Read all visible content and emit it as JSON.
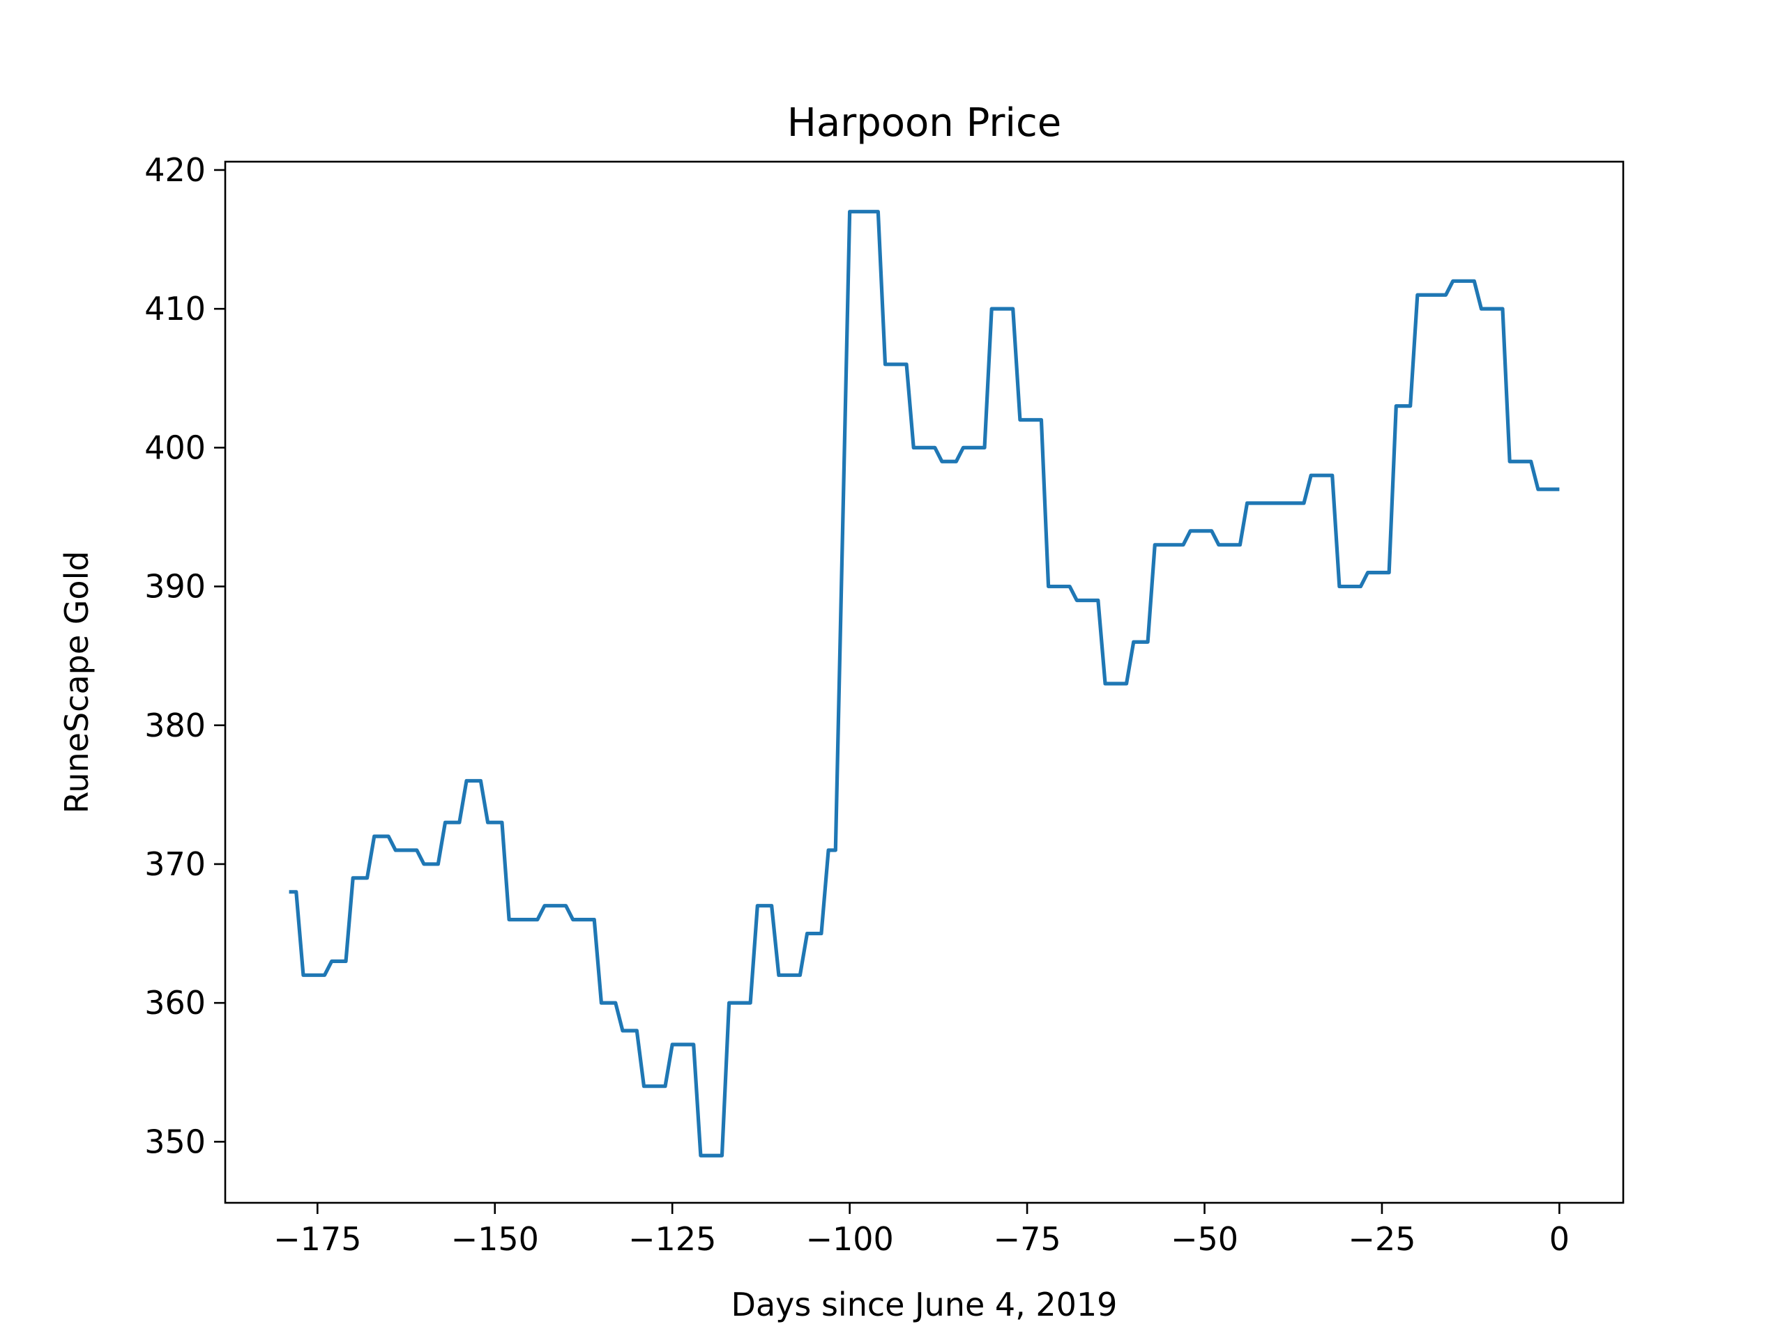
{
  "chart_data": {
    "type": "line",
    "title": "Harpoon Price",
    "xlabel": "Days since June 4, 2019",
    "ylabel": "RuneScape Gold",
    "xlim": [
      -188,
      9
    ],
    "ylim": [
      345.6,
      420.6
    ],
    "xticks": [
      -175,
      -150,
      -125,
      -100,
      -75,
      -50,
      -25,
      0
    ],
    "xtick_labels": [
      "−175",
      "−150",
      "−125",
      "−100",
      "−75",
      "−50",
      "−25",
      "0"
    ],
    "yticks": [
      350,
      360,
      370,
      380,
      390,
      400,
      410,
      420
    ],
    "ytick_labels": [
      "350",
      "360",
      "370",
      "380",
      "390",
      "400",
      "410",
      "420"
    ],
    "grid": false,
    "legend": "none",
    "series": [
      {
        "color": "#1f77b4",
        "x": [
          -179,
          -178,
          -177,
          -176,
          -175,
          -174,
          -173,
          -172,
          -171,
          -170,
          -169,
          -168,
          -167,
          -166,
          -165,
          -164,
          -163,
          -162,
          -161,
          -160,
          -159,
          -158,
          -157,
          -156,
          -155,
          -154,
          -153,
          -152,
          -151,
          -150,
          -149,
          -148,
          -147,
          -146,
          -145,
          -144,
          -143,
          -142,
          -141,
          -140,
          -139,
          -138,
          -137,
          -136,
          -135,
          -134,
          -133,
          -132,
          -131,
          -130,
          -129,
          -128,
          -127,
          -126,
          -125,
          -124,
          -123,
          -122,
          -121,
          -120,
          -119,
          -118,
          -117,
          -116,
          -115,
          -114,
          -113,
          -112,
          -111,
          -110,
          -109,
          -108,
          -107,
          -106,
          -105,
          -104,
          -103,
          -102,
          -101,
          -100,
          -99,
          -98,
          -97,
          -96,
          -95,
          -94,
          -93,
          -92,
          -91,
          -90,
          -89,
          -88,
          -87,
          -86,
          -85,
          -84,
          -83,
          -82,
          -81,
          -80,
          -79,
          -78,
          -77,
          -76,
          -75,
          -74,
          -73,
          -72,
          -71,
          -70,
          -69,
          -68,
          -67,
          -66,
          -65,
          -64,
          -63,
          -62,
          -61,
          -60,
          -59,
          -58,
          -57,
          -56,
          -55,
          -54,
          -53,
          -52,
          -51,
          -50,
          -49,
          -48,
          -47,
          -46,
          -45,
          -44,
          -43,
          -42,
          -41,
          -40,
          -39,
          -38,
          -37,
          -36,
          -35,
          -34,
          -33,
          -32,
          -31,
          -30,
          -29,
          -28,
          -27,
          -26,
          -25,
          -24,
          -23,
          -22,
          -21,
          -20,
          -19,
          -18,
          -17,
          -16,
          -15,
          -14,
          -13,
          -12,
          -11,
          -10,
          -9,
          -8,
          -7,
          -6,
          -5,
          -4,
          -3,
          -2,
          -1,
          0
        ],
        "y": [
          368,
          368,
          362,
          362,
          362,
          362,
          363,
          363,
          363,
          369,
          369,
          369,
          372,
          372,
          372,
          371,
          371,
          371,
          371,
          370,
          370,
          370,
          373,
          373,
          373,
          376,
          376,
          376,
          373,
          373,
          373,
          366,
          366,
          366,
          366,
          366,
          367,
          367,
          367,
          367,
          366,
          366,
          366,
          366,
          360,
          360,
          360,
          358,
          358,
          358,
          354,
          354,
          354,
          354,
          357,
          357,
          357,
          357,
          349,
          349,
          349,
          349,
          360,
          360,
          360,
          360,
          367,
          367,
          367,
          362,
          362,
          362,
          362,
          365,
          365,
          365,
          371,
          371,
          394,
          417,
          417,
          417,
          417,
          417,
          406,
          406,
          406,
          406,
          400,
          400,
          400,
          400,
          399,
          399,
          399,
          400,
          400,
          400,
          400,
          410,
          410,
          410,
          410,
          402,
          402,
          402,
          402,
          390,
          390,
          390,
          390,
          389,
          389,
          389,
          389,
          383,
          383,
          383,
          383,
          386,
          386,
          386,
          393,
          393,
          393,
          393,
          393,
          394,
          394,
          394,
          394,
          393,
          393,
          393,
          393,
          396,
          396,
          396,
          396,
          396,
          396,
          396,
          396,
          396,
          398,
          398,
          398,
          398,
          390,
          390,
          390,
          390,
          391,
          391,
          391,
          391,
          403,
          403,
          403,
          411,
          411,
          411,
          411,
          411,
          412,
          412,
          412,
          412,
          410,
          410,
          410,
          410,
          399,
          399,
          399,
          399,
          397,
          397,
          397,
          397
        ]
      }
    ]
  }
}
